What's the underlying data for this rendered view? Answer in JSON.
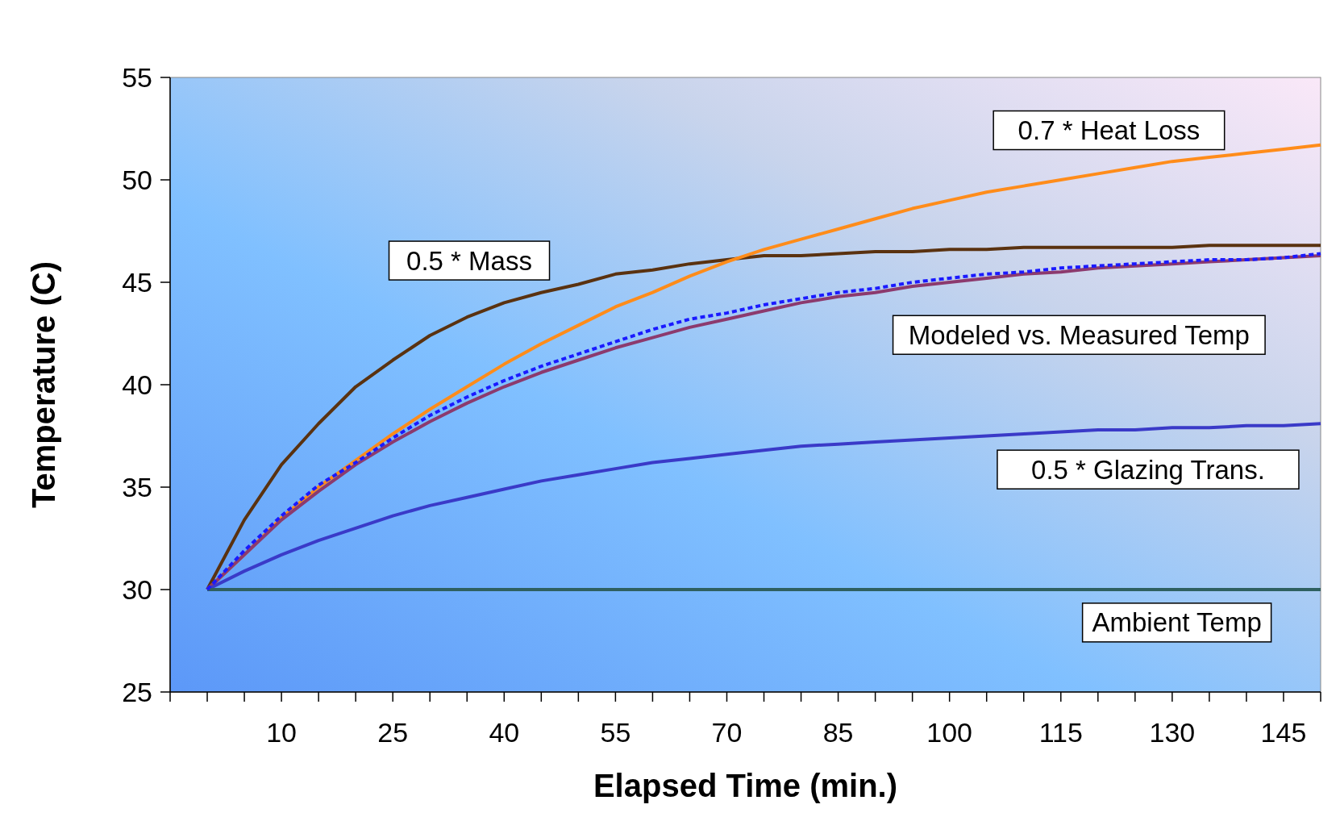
{
  "chart_data": {
    "type": "line",
    "xlabel": "Elapsed Time (min.)",
    "ylabel": "Temperature (C)",
    "x": [
      0,
      5,
      10,
      15,
      20,
      25,
      30,
      35,
      40,
      45,
      50,
      55,
      60,
      65,
      70,
      75,
      80,
      85,
      90,
      95,
      100,
      105,
      110,
      115,
      120,
      125,
      130,
      135,
      140,
      145,
      150
    ],
    "xlim": [
      -5,
      150
    ],
    "xticks": [
      {
        "value": -5,
        "label": null
      },
      {
        "value": 0,
        "label": null
      },
      {
        "value": 5,
        "label": null
      },
      10,
      {
        "value": 15,
        "label": null
      },
      {
        "value": 20,
        "label": null
      },
      25,
      {
        "value": 30,
        "label": null
      },
      {
        "value": 35,
        "label": null
      },
      40,
      {
        "value": 45,
        "label": null
      },
      {
        "value": 50,
        "label": null
      },
      55,
      {
        "value": 60,
        "label": null
      },
      {
        "value": 65,
        "label": null
      },
      70,
      {
        "value": 75,
        "label": null
      },
      {
        "value": 80,
        "label": null
      },
      85,
      {
        "value": 90,
        "label": null
      },
      {
        "value": 95,
        "label": null
      },
      100,
      {
        "value": 105,
        "label": null
      },
      {
        "value": 110,
        "label": null
      },
      115,
      {
        "value": 120,
        "label": null
      },
      {
        "value": 125,
        "label": null
      },
      130,
      {
        "value": 135,
        "label": null
      },
      {
        "value": 140,
        "label": null
      },
      145,
      {
        "value": 150,
        "label": null
      }
    ],
    "ylim": [
      25,
      55
    ],
    "yticks": [
      25,
      30,
      35,
      40,
      45,
      50,
      55
    ],
    "grid": false,
    "marker": "none",
    "line_style": "solid",
    "series": [
      {
        "name": "0.5 * Mass",
        "color": "#5a3210",
        "values": [
          30,
          33.4,
          36.1,
          38.1,
          39.9,
          41.2,
          42.4,
          43.3,
          44.0,
          44.5,
          44.9,
          45.4,
          45.6,
          45.9,
          46.1,
          46.3,
          46.3,
          46.4,
          46.5,
          46.5,
          46.6,
          46.6,
          46.7,
          46.7,
          46.7,
          46.7,
          46.7,
          46.8,
          46.8,
          46.8,
          46.8
        ]
      },
      {
        "name": "0.7 * Heat Loss",
        "color": "#ff8c1a",
        "values": [
          30,
          31.7,
          33.5,
          35.0,
          36.3,
          37.6,
          38.8,
          39.9,
          41.0,
          42.0,
          42.9,
          43.8,
          44.5,
          45.3,
          46.0,
          46.6,
          47.1,
          47.6,
          48.1,
          48.6,
          49.0,
          49.4,
          49.7,
          50.0,
          50.3,
          50.6,
          50.9,
          51.1,
          51.3,
          51.5,
          51.7
        ]
      },
      {
        "color": "#1a1aff",
        "line_style": "dashed",
        "values": [
          30,
          31.9,
          33.6,
          35.1,
          36.2,
          37.4,
          38.5,
          39.4,
          40.2,
          40.9,
          41.5,
          42.1,
          42.7,
          43.2,
          43.5,
          43.9,
          44.2,
          44.5,
          44.7,
          45.0,
          45.2,
          45.4,
          45.5,
          45.7,
          45.8,
          45.9,
          46.0,
          46.1,
          46.1,
          46.2,
          46.4
        ]
      },
      {
        "name": "Modeled vs. Measured Temp",
        "color": "#8c3a6e",
        "values": [
          30,
          31.7,
          33.4,
          34.8,
          36.1,
          37.2,
          38.2,
          39.1,
          39.9,
          40.6,
          41.2,
          41.8,
          42.3,
          42.8,
          43.2,
          43.6,
          44.0,
          44.3,
          44.5,
          44.8,
          45.0,
          45.2,
          45.4,
          45.5,
          45.7,
          45.8,
          45.9,
          46.0,
          46.1,
          46.2,
          46.3
        ]
      },
      {
        "name": "0.5 * Glazing Trans.",
        "color": "#3a3ac8",
        "values": [
          30,
          30.9,
          31.7,
          32.4,
          33.0,
          33.6,
          34.1,
          34.5,
          34.9,
          35.3,
          35.6,
          35.9,
          36.2,
          36.4,
          36.6,
          36.8,
          37.0,
          37.1,
          37.2,
          37.3,
          37.4,
          37.5,
          37.6,
          37.7,
          37.8,
          37.8,
          37.9,
          37.9,
          38.0,
          38.0,
          38.1
        ]
      },
      {
        "name": "Ambient Temp",
        "color": "#2f6060",
        "values": [
          30,
          30,
          30,
          30,
          30,
          30,
          30,
          30,
          30,
          30,
          30,
          30,
          30,
          30,
          30,
          30,
          30,
          30,
          30,
          30,
          30,
          30,
          30,
          30,
          30,
          30,
          30,
          30,
          30,
          30,
          30
        ]
      }
    ]
  }
}
